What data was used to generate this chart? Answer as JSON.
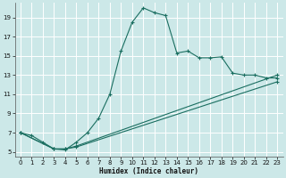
{
  "xlabel": "Humidex (Indice chaleur)",
  "bg_color": "#cce8e8",
  "grid_color": "#ffffff",
  "line_color": "#1a6e60",
  "xlim": [
    -0.5,
    23.5
  ],
  "ylim": [
    4.5,
    20.5
  ],
  "yticks": [
    5,
    7,
    9,
    11,
    13,
    15,
    17,
    19
  ],
  "xticks": [
    0,
    1,
    2,
    3,
    4,
    5,
    6,
    7,
    8,
    9,
    10,
    11,
    12,
    13,
    14,
    15,
    16,
    17,
    18,
    19,
    20,
    21,
    22,
    23
  ],
  "series1_x": [
    0,
    1,
    2,
    3,
    4,
    5,
    6,
    7,
    8,
    9,
    10,
    11,
    12,
    13,
    14,
    15,
    16,
    17,
    18,
    19,
    20,
    21,
    22,
    23
  ],
  "series1_y": [
    7.0,
    6.7,
    6.0,
    5.3,
    5.2,
    6.0,
    7.0,
    8.5,
    11.0,
    15.5,
    18.5,
    20.0,
    19.5,
    19.2,
    15.3,
    15.5,
    14.8,
    14.8,
    14.9,
    13.2,
    13.0,
    13.0,
    12.7,
    12.7
  ],
  "series2_x": [
    0,
    3,
    4,
    5,
    23
  ],
  "series2_y": [
    7.0,
    5.3,
    5.3,
    5.6,
    13.0
  ],
  "series3_x": [
    0,
    3,
    4,
    5,
    23
  ],
  "series3_y": [
    7.0,
    5.3,
    5.3,
    5.5,
    12.3
  ]
}
